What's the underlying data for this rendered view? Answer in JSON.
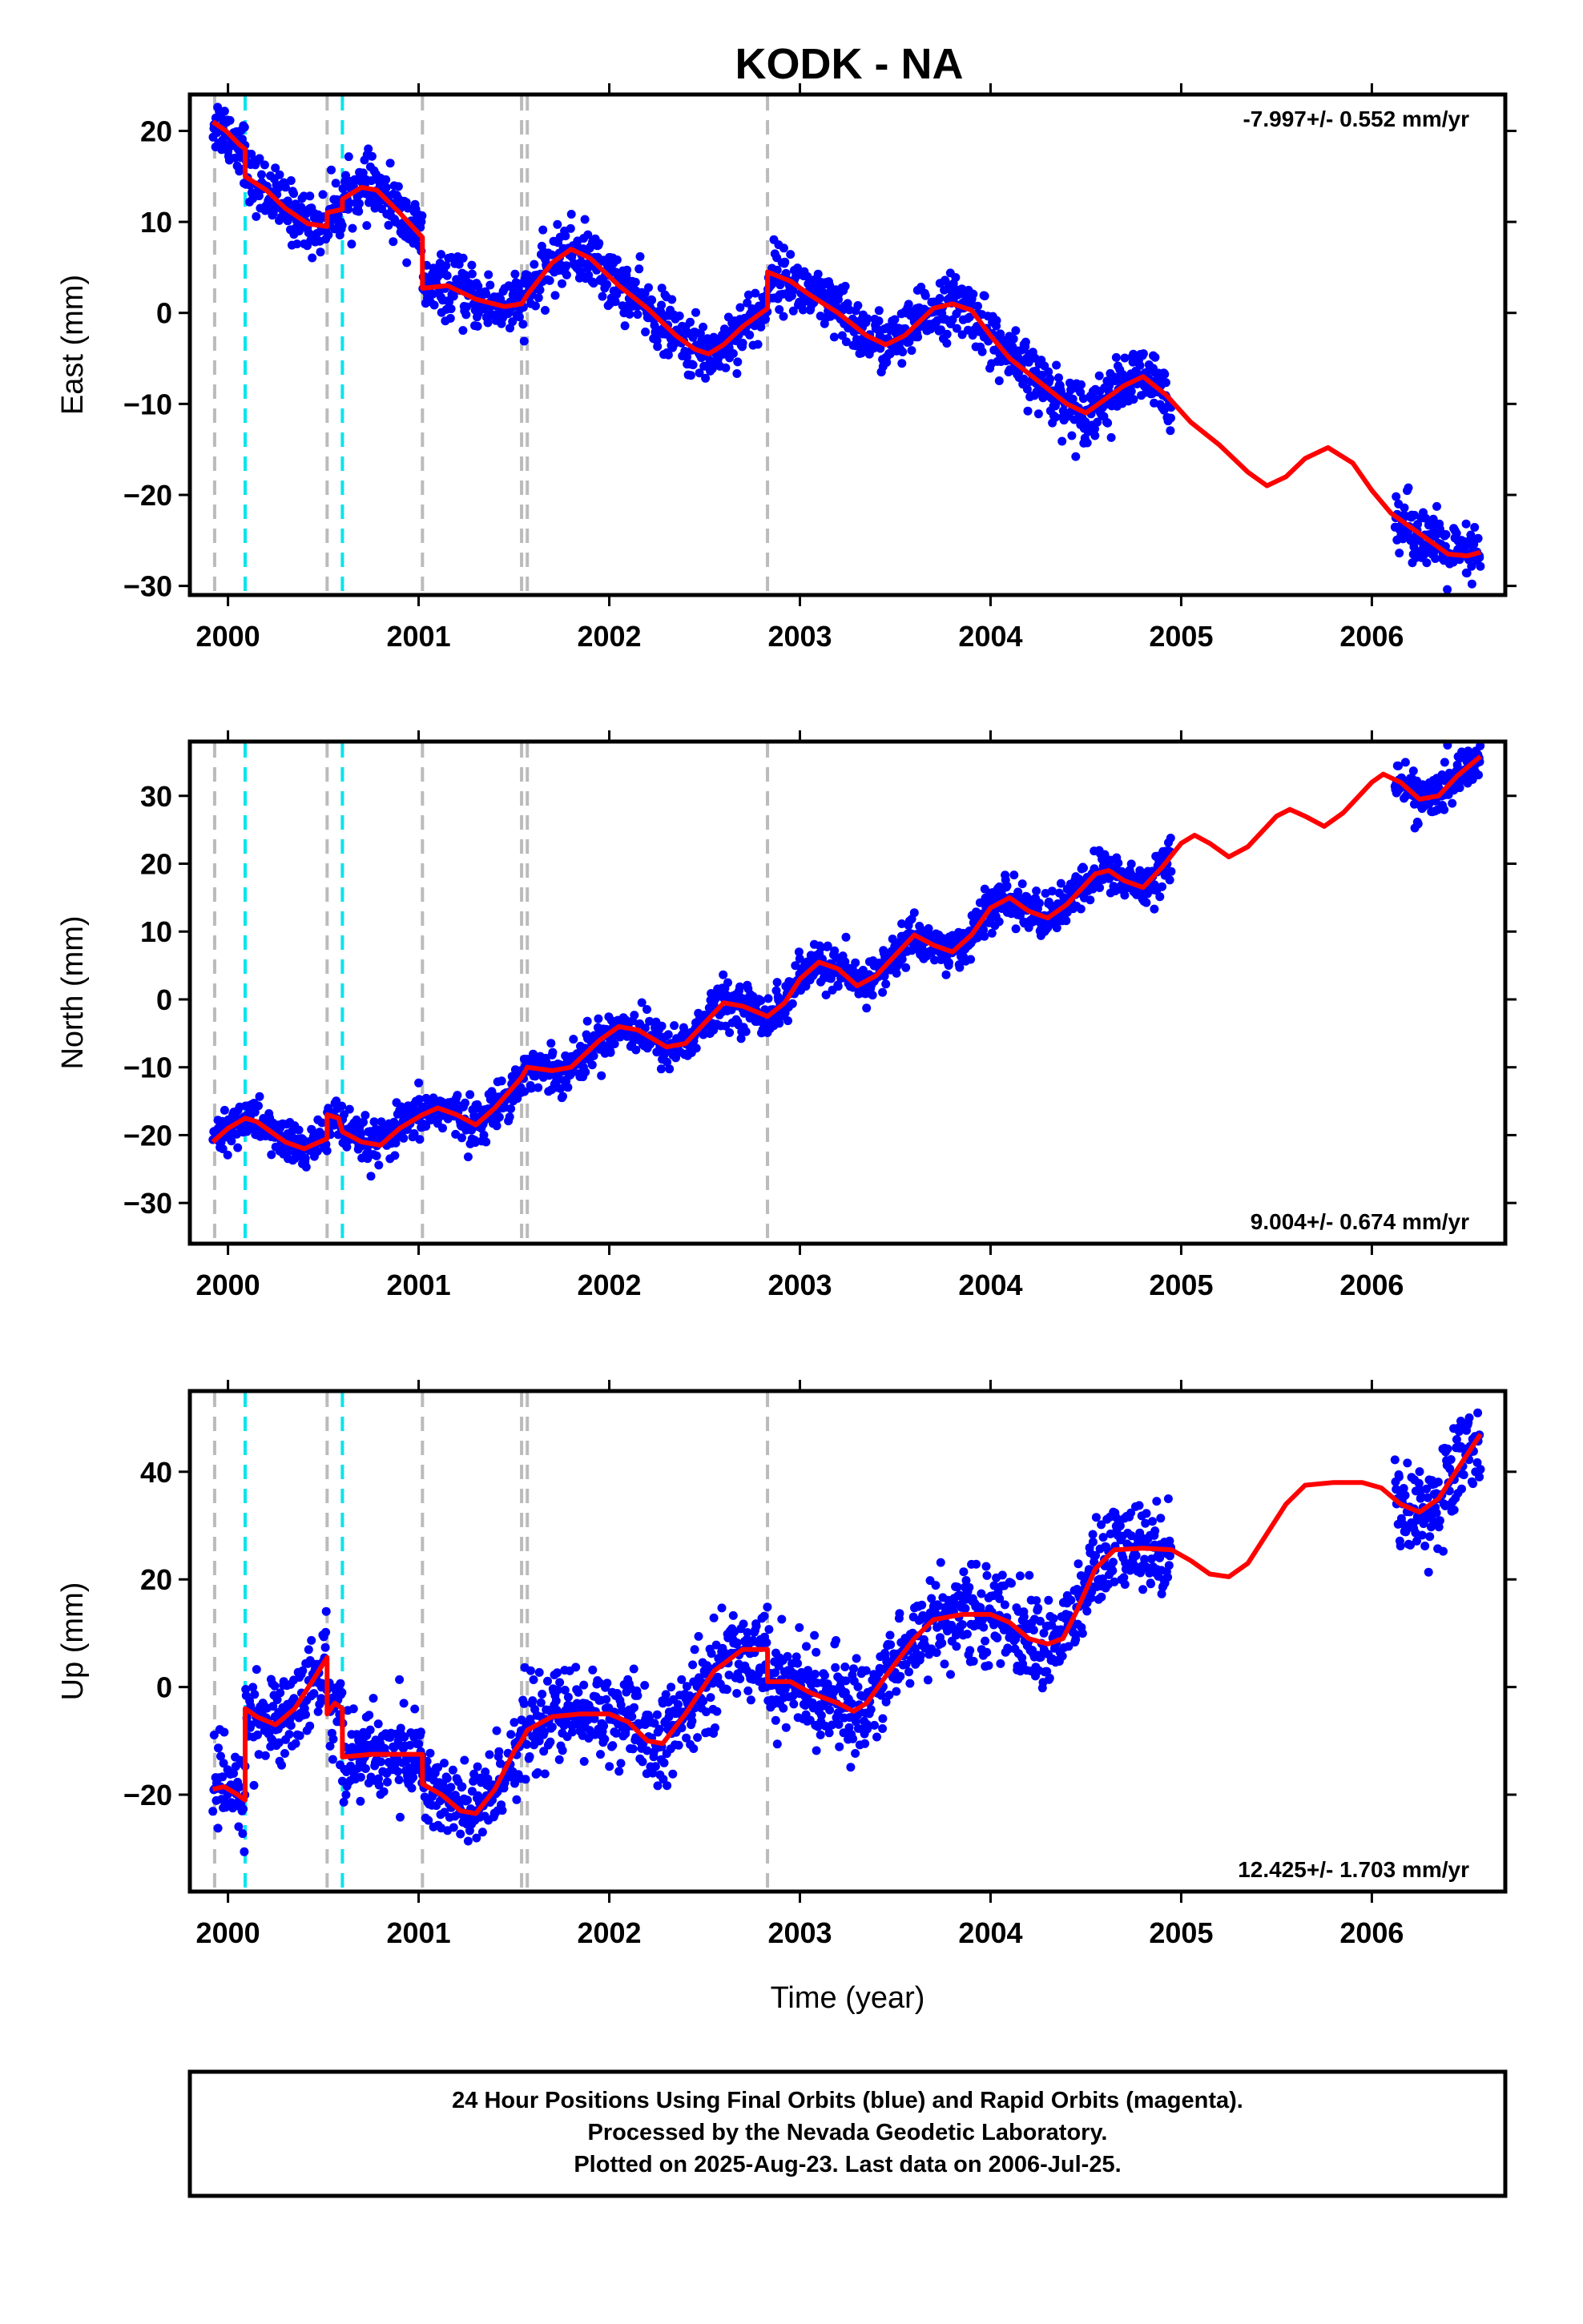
{
  "title": "KODK - NA",
  "colors": {
    "points": "#0000ff",
    "model": "#ff0000",
    "event_gray": "#bbbbbb",
    "event_cyan": "#00e5ee"
  },
  "chart_data": {
    "type": "scatter",
    "xlabel": "Time (year)",
    "xlim": [
      1999.8,
      2006.7
    ],
    "xticks": [
      "2000",
      "2001",
      "2002",
      "2003",
      "2004",
      "2005",
      "2006"
    ],
    "events": {
      "gray": [
        1999.93,
        2000.52,
        2001.02,
        2001.54,
        2001.57,
        2002.83
      ],
      "cyan": [
        2000.09,
        2000.6
      ]
    },
    "panels": [
      {
        "component": "East",
        "ylabel": "East (mm)",
        "ylim": [
          -31,
          24
        ],
        "yticks": [
          20,
          10,
          0,
          -10,
          -20,
          -30
        ],
        "rate": "-7.997+/- 0.552 mm/yr",
        "rate_position": "top-right",
        "data_segments": [
          [
            1999.92,
            2002.98
          ],
          [
            2002.98,
            2004.95
          ],
          [
            2006.12,
            2006.57
          ]
        ],
        "model": [
          [
            1999.92,
            21
          ],
          [
            1999.99,
            20
          ],
          [
            2000.06,
            18.5
          ],
          [
            2000.09,
            18
          ],
          [
            2000.09,
            15
          ],
          [
            2000.2,
            13.5
          ],
          [
            2000.3,
            11.5
          ],
          [
            2000.42,
            9.8
          ],
          [
            2000.52,
            9.5
          ],
          [
            2000.52,
            11
          ],
          [
            2000.6,
            11.4
          ],
          [
            2000.6,
            12.5
          ],
          [
            2000.7,
            13.8
          ],
          [
            2000.78,
            13.5
          ],
          [
            2000.9,
            11
          ],
          [
            2001.02,
            8.3
          ],
          [
            2001.02,
            2.7
          ],
          [
            2001.15,
            3
          ],
          [
            2001.3,
            1.5
          ],
          [
            2001.45,
            0.7
          ],
          [
            2001.54,
            1
          ],
          [
            2001.57,
            2
          ],
          [
            2001.7,
            5.5
          ],
          [
            2001.8,
            7
          ],
          [
            2001.9,
            6
          ],
          [
            2002.05,
            3
          ],
          [
            2002.2,
            0.5
          ],
          [
            2002.35,
            -2.5
          ],
          [
            2002.45,
            -4
          ],
          [
            2002.52,
            -4.5
          ],
          [
            2002.6,
            -3.5
          ],
          [
            2002.7,
            -1.5
          ],
          [
            2002.83,
            0.5
          ],
          [
            2002.83,
            4.5
          ],
          [
            2002.95,
            3.5
          ],
          [
            2003.05,
            2
          ],
          [
            2003.2,
            0
          ],
          [
            2003.35,
            -2.5
          ],
          [
            2003.45,
            -3.5
          ],
          [
            2003.55,
            -2.5
          ],
          [
            2003.7,
            0.5
          ],
          [
            2003.8,
            1
          ],
          [
            2003.9,
            0.3
          ],
          [
            2004.0,
            -2.5
          ],
          [
            2004.1,
            -5
          ],
          [
            2004.25,
            -7.5
          ],
          [
            2004.4,
            -10
          ],
          [
            2004.5,
            -11
          ],
          [
            2004.6,
            -9.5
          ],
          [
            2004.7,
            -8
          ],
          [
            2004.8,
            -7
          ],
          [
            2004.92,
            -9
          ],
          [
            2005.05,
            -12
          ],
          [
            2005.2,
            -14.5
          ],
          [
            2005.35,
            -17.5
          ],
          [
            2005.45,
            -19
          ],
          [
            2005.55,
            -18
          ],
          [
            2005.65,
            -16
          ],
          [
            2005.77,
            -14.8
          ],
          [
            2005.9,
            -16.5
          ],
          [
            2006.0,
            -19.5
          ],
          [
            2006.1,
            -22
          ],
          [
            2006.2,
            -23.5
          ],
          [
            2006.3,
            -25
          ],
          [
            2006.4,
            -26.5
          ],
          [
            2006.5,
            -26.7
          ],
          [
            2006.57,
            -26.3
          ]
        ]
      },
      {
        "component": "North",
        "ylabel": "North (mm)",
        "ylim": [
          -36,
          38
        ],
        "yticks": [
          30,
          20,
          10,
          0,
          -10,
          -20,
          -30
        ],
        "rate": "9.004+/- 0.674 mm/yr",
        "rate_position": "bottom-right",
        "data_segments": [
          [
            1999.92,
            2002.98
          ],
          [
            2002.98,
            2004.95
          ],
          [
            2006.12,
            2006.57
          ]
        ],
        "model": [
          [
            1999.92,
            -21
          ],
          [
            2000.0,
            -19
          ],
          [
            2000.09,
            -17.5
          ],
          [
            2000.15,
            -18
          ],
          [
            2000.3,
            -21
          ],
          [
            2000.4,
            -22
          ],
          [
            2000.52,
            -20.5
          ],
          [
            2000.52,
            -17
          ],
          [
            2000.58,
            -17.5
          ],
          [
            2000.6,
            -19.5
          ],
          [
            2000.7,
            -21
          ],
          [
            2000.8,
            -21.5
          ],
          [
            2000.9,
            -19
          ],
          [
            2001.02,
            -17
          ],
          [
            2001.1,
            -16
          ],
          [
            2001.2,
            -17
          ],
          [
            2001.3,
            -18.5
          ],
          [
            2001.4,
            -16
          ],
          [
            2001.54,
            -11.5
          ],
          [
            2001.57,
            -10
          ],
          [
            2001.7,
            -10.5
          ],
          [
            2001.8,
            -10
          ],
          [
            2001.95,
            -6
          ],
          [
            2002.05,
            -4
          ],
          [
            2002.15,
            -4.5
          ],
          [
            2002.3,
            -7
          ],
          [
            2002.4,
            -6.5
          ],
          [
            2002.5,
            -3.5
          ],
          [
            2002.6,
            -0.5
          ],
          [
            2002.7,
            -1
          ],
          [
            2002.83,
            -2.5
          ],
          [
            2002.92,
            -0.5
          ],
          [
            2003.0,
            3
          ],
          [
            2003.1,
            5.5
          ],
          [
            2003.2,
            4.5
          ],
          [
            2003.3,
            2
          ],
          [
            2003.4,
            3.5
          ],
          [
            2003.55,
            8
          ],
          [
            2003.6,
            9.5
          ],
          [
            2003.7,
            8
          ],
          [
            2003.8,
            7
          ],
          [
            2003.9,
            9.5
          ],
          [
            2004.0,
            13.5
          ],
          [
            2004.1,
            15
          ],
          [
            2004.2,
            13
          ],
          [
            2004.3,
            12
          ],
          [
            2004.4,
            14
          ],
          [
            2004.55,
            18.5
          ],
          [
            2004.62,
            19
          ],
          [
            2004.7,
            17.5
          ],
          [
            2004.8,
            16.5
          ],
          [
            2004.9,
            19.5
          ],
          [
            2005.0,
            23
          ],
          [
            2005.07,
            24.2
          ],
          [
            2005.15,
            23
          ],
          [
            2005.25,
            21
          ],
          [
            2005.35,
            22.5
          ],
          [
            2005.5,
            27
          ],
          [
            2005.57,
            28
          ],
          [
            2005.65,
            27
          ],
          [
            2005.75,
            25.5
          ],
          [
            2005.85,
            27.5
          ],
          [
            2006.0,
            32
          ],
          [
            2006.06,
            33.2
          ],
          [
            2006.15,
            32
          ],
          [
            2006.25,
            29.5
          ],
          [
            2006.35,
            30
          ],
          [
            2006.45,
            33
          ],
          [
            2006.57,
            35.8
          ]
        ]
      },
      {
        "component": "Up",
        "ylabel": "Up (mm)",
        "ylim": [
          -38,
          55
        ],
        "yticks": [
          40,
          20,
          0,
          -20
        ],
        "rate": "12.425+/- 1.703 mm/yr",
        "rate_position": "bottom-right",
        "data_segments": [
          [
            1999.92,
            2002.98
          ],
          [
            2002.98,
            2004.95
          ],
          [
            2006.12,
            2006.57
          ]
        ],
        "model": [
          [
            1999.92,
            -19
          ],
          [
            1999.98,
            -18.5
          ],
          [
            2000.05,
            -20
          ],
          [
            2000.09,
            -21
          ],
          [
            2000.09,
            -4
          ],
          [
            2000.15,
            -5.5
          ],
          [
            2000.25,
            -7
          ],
          [
            2000.35,
            -4
          ],
          [
            2000.45,
            1.5
          ],
          [
            2000.52,
            5.5
          ],
          [
            2000.52,
            -5
          ],
          [
            2000.56,
            -3
          ],
          [
            2000.6,
            -4
          ],
          [
            2000.6,
            -13
          ],
          [
            2000.75,
            -12.5
          ],
          [
            2000.9,
            -12.5
          ],
          [
            2001.02,
            -12.5
          ],
          [
            2001.02,
            -18
          ],
          [
            2001.12,
            -20
          ],
          [
            2001.22,
            -23
          ],
          [
            2001.3,
            -23.5
          ],
          [
            2001.4,
            -19
          ],
          [
            2001.5,
            -12
          ],
          [
            2001.54,
            -10
          ],
          [
            2001.57,
            -8
          ],
          [
            2001.7,
            -5.5
          ],
          [
            2001.85,
            -5
          ],
          [
            2002.0,
            -5
          ],
          [
            2002.1,
            -6.5
          ],
          [
            2002.2,
            -10
          ],
          [
            2002.28,
            -10.5
          ],
          [
            2002.4,
            -5
          ],
          [
            2002.55,
            3
          ],
          [
            2002.7,
            7
          ],
          [
            2002.83,
            7
          ],
          [
            2002.83,
            1
          ],
          [
            2002.95,
            1
          ],
          [
            2003.05,
            -1
          ],
          [
            2003.2,
            -3
          ],
          [
            2003.28,
            -4.5
          ],
          [
            2003.35,
            -3
          ],
          [
            2003.45,
            2
          ],
          [
            2003.6,
            9
          ],
          [
            2003.7,
            12.5
          ],
          [
            2003.85,
            13.5
          ],
          [
            2004.0,
            13.5
          ],
          [
            2004.1,
            12
          ],
          [
            2004.2,
            9
          ],
          [
            2004.3,
            8
          ],
          [
            2004.38,
            9
          ],
          [
            2004.45,
            14
          ],
          [
            2004.55,
            22
          ],
          [
            2004.65,
            25.5
          ],
          [
            2004.8,
            25.8
          ],
          [
            2004.95,
            25.5
          ],
          [
            2005.05,
            23.5
          ],
          [
            2005.15,
            21
          ],
          [
            2005.25,
            20.5
          ],
          [
            2005.35,
            23
          ],
          [
            2005.45,
            28.5
          ],
          [
            2005.55,
            34
          ],
          [
            2005.65,
            37.5
          ],
          [
            2005.8,
            38
          ],
          [
            2005.95,
            38
          ],
          [
            2006.05,
            37
          ],
          [
            2006.15,
            34
          ],
          [
            2006.25,
            32.5
          ],
          [
            2006.35,
            35
          ],
          [
            2006.45,
            40.5
          ],
          [
            2006.57,
            47
          ]
        ]
      }
    ]
  },
  "footer": {
    "lines": [
      "24 Hour Positions Using Final Orbits (blue) and Rapid Orbits (magenta).",
      "Processed by the Nevada Geodetic Laboratory.",
      "Plotted on 2025-Aug-23. Last data on 2006-Jul-25."
    ]
  }
}
